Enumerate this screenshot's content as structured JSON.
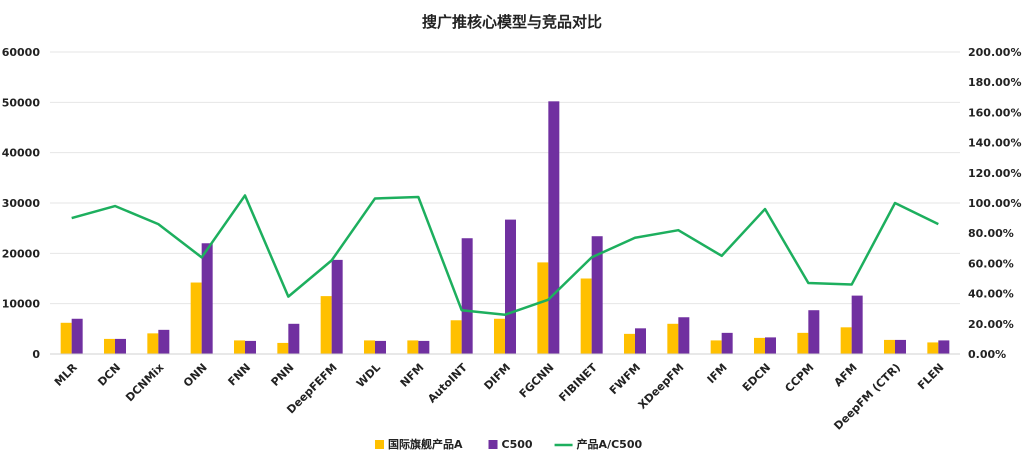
{
  "chart_data": {
    "type": "bar",
    "title": "搜广推核心模型与竞品对比",
    "categories": [
      "MLR",
      "DCN",
      "DCNMix",
      "ONN",
      "FNN",
      "PNN",
      "DeepFEFM",
      "WDL",
      "NFM",
      "AutoINT",
      "DIFM",
      "FGCNN",
      "FIBINET",
      "FWFM",
      "XDeepFM",
      "IFM",
      "EDCN",
      "CCPM",
      "AFM",
      "DeepFM (CTR)",
      "FLEN"
    ],
    "y_left": {
      "min": 0,
      "max": 60000,
      "step": 10000,
      "ticks": [
        "0",
        "10000",
        "20000",
        "30000",
        "40000",
        "50000",
        "60000"
      ]
    },
    "y_right": {
      "min": 0,
      "max": 2.0,
      "step": 0.2,
      "ticks": [
        "0.00%",
        "20.00%",
        "40.00%",
        "60.00%",
        "80.00%",
        "100.00%",
        "120.00%",
        "140.00%",
        "160.00%",
        "180.00%",
        "200.00%"
      ]
    },
    "grid": true,
    "legend_position": "bottom",
    "series": [
      {
        "name": "国际旗舰产品A",
        "kind": "bar",
        "axis": "left",
        "color": "#FFC000",
        "values": [
          6200,
          3000,
          4100,
          14200,
          2700,
          2200,
          11500,
          2700,
          2700,
          6700,
          7000,
          18200,
          15000,
          4000,
          6000,
          2700,
          3200,
          4200,
          5300,
          2800,
          2300
        ]
      },
      {
        "name": "C500",
        "kind": "bar",
        "axis": "left",
        "color": "#7030A0",
        "values": [
          7000,
          3000,
          4800,
          22000,
          2600,
          6000,
          18700,
          2600,
          2600,
          23000,
          26700,
          50200,
          23400,
          5100,
          7300,
          4200,
          3300,
          8700,
          11600,
          2800,
          2700
        ]
      },
      {
        "name": "产品A/C500",
        "kind": "line",
        "axis": "right",
        "color": "#1DAF5E",
        "values": [
          0.9,
          0.98,
          0.86,
          0.64,
          1.05,
          0.38,
          0.62,
          1.03,
          1.04,
          0.29,
          0.26,
          0.36,
          0.64,
          0.77,
          0.82,
          0.65,
          0.96,
          0.47,
          0.46,
          1.0,
          0.86
        ]
      }
    ]
  }
}
